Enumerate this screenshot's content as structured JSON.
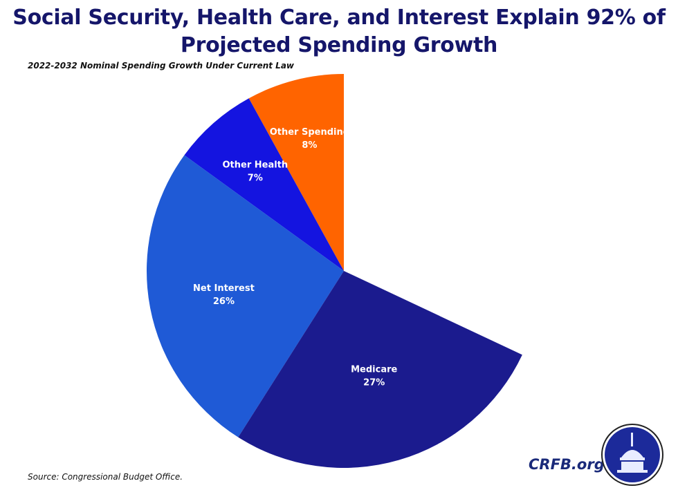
{
  "title_lines": [
    "Social Security, Health Care, and Interest Explain 92% of",
    "Projected Spending Growth"
  ],
  "source": "Source: Congressional Budget Office.",
  "brand": "CRFB.org",
  "chart_data": {
    "type": "pie",
    "subtitle": "2022-2032 Nominal Spending Growth Under Current Law",
    "start": "top",
    "direction": "counterclockwise",
    "slices": [
      {
        "label": "Other Spending",
        "value": 8,
        "value_label": "8%",
        "color": "#ff6400"
      },
      {
        "label": "Other Health",
        "value": 7,
        "value_label": "7%",
        "color": "#1414e0"
      },
      {
        "label": "Net Interest",
        "value": 26,
        "value_label": "26%",
        "color": "#1f5ad6"
      },
      {
        "label": "Medicare",
        "value": 27,
        "value_label": "27%",
        "color": "#1b1b8e"
      }
    ],
    "unshown_remainder_percent": 32
  }
}
